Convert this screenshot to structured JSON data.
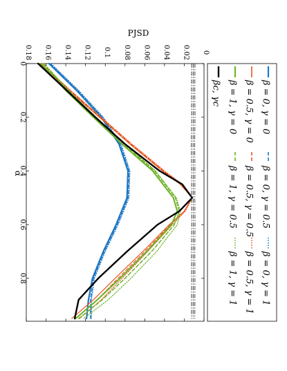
{
  "chart_data": {
    "type": "line",
    "orientation": "rotated-90-clockwise",
    "xlabel": "α",
    "ylabel": "PJSD",
    "xlim": [
      0,
      0.96
    ],
    "ylim": [
      0,
      0.18
    ],
    "x_ticks": [
      "0",
      "0.2",
      "0.4",
      "0.6",
      "0.8"
    ],
    "x_tick_values": [
      0,
      0.2,
      0.4,
      0.6,
      0.8
    ],
    "y_ticks": [
      "0",
      "0.02",
      "0.04",
      "0.06",
      "0.08",
      "0.1",
      "0.12",
      "0.14",
      "0.16",
      "0.18"
    ],
    "y_tick_values": [
      0,
      0.02,
      0.04,
      0.06,
      0.08,
      0.1,
      0.12,
      0.14,
      0.16,
      0.18
    ],
    "grid": false,
    "legend_position": "right",
    "series": [
      {
        "name": "β = 0, γ = 0",
        "color": "#1f77c4",
        "dash": "solid",
        "width": 2.2,
        "x": [
          0.0,
          0.1,
          0.2,
          0.3,
          0.4,
          0.5,
          0.6,
          0.7,
          0.8,
          0.88,
          0.95
        ],
        "y": [
          0.157,
          0.129,
          0.104,
          0.086,
          0.077,
          0.078,
          0.089,
          0.102,
          0.113,
          0.117,
          0.119
        ]
      },
      {
        "name": "β = 0, γ = 0.5",
        "color": "#1f77c4",
        "dash": "dash",
        "width": 1.4,
        "x": [
          0.0,
          0.1,
          0.2,
          0.3,
          0.4,
          0.5,
          0.6,
          0.7,
          0.8,
          0.88,
          0.95
        ],
        "y": [
          0.156,
          0.128,
          0.103,
          0.085,
          0.076,
          0.077,
          0.088,
          0.101,
          0.112,
          0.115,
          0.115
        ]
      },
      {
        "name": "β = 0, γ = 1",
        "color": "#1f77c4",
        "dash": "dot",
        "width": 1.2,
        "x": [
          0.0,
          0.1,
          0.2,
          0.3,
          0.4,
          0.5,
          0.6,
          0.7,
          0.8,
          0.88,
          0.95
        ],
        "y": [
          0.155,
          0.127,
          0.102,
          0.084,
          0.075,
          0.076,
          0.087,
          0.1,
          0.111,
          0.114,
          0.114
        ]
      },
      {
        "name": "β = 0.5, γ = 0",
        "color": "#e8541e",
        "dash": "solid",
        "width": 1.2,
        "x": [
          0.0,
          0.1,
          0.2,
          0.3,
          0.4,
          0.45,
          0.5,
          0.55,
          0.6,
          0.7,
          0.8,
          0.88,
          0.95
        ],
        "y": [
          0.167,
          0.137,
          0.106,
          0.075,
          0.042,
          0.024,
          0.012,
          0.02,
          0.035,
          0.062,
          0.09,
          0.112,
          0.134
        ]
      },
      {
        "name": "β = 0.5, γ = 0.5",
        "color": "#e8541e",
        "dash": "dash",
        "width": 1.2,
        "x": [
          0.0,
          0.1,
          0.2,
          0.3,
          0.4,
          0.45,
          0.5,
          0.55,
          0.6,
          0.7,
          0.8,
          0.88,
          0.95
        ],
        "y": [
          0.166,
          0.136,
          0.105,
          0.074,
          0.041,
          0.023,
          0.012,
          0.02,
          0.034,
          0.06,
          0.087,
          0.108,
          0.13
        ]
      },
      {
        "name": "β = 0.5, γ = 1",
        "color": "#e8541e",
        "dash": "dot",
        "width": 1.2,
        "x": [
          0.0,
          0.1,
          0.2,
          0.3,
          0.4,
          0.45,
          0.5,
          0.55,
          0.6,
          0.7,
          0.8,
          0.88,
          0.95
        ],
        "y": [
          0.165,
          0.135,
          0.104,
          0.073,
          0.04,
          0.022,
          0.012,
          0.019,
          0.032,
          0.057,
          0.083,
          0.104,
          0.126
        ]
      },
      {
        "name": "β = 1, γ = 0",
        "color": "#6ab023",
        "dash": "solid",
        "width": 2.0,
        "x": [
          0.0,
          0.1,
          0.2,
          0.3,
          0.4,
          0.5,
          0.55,
          0.6,
          0.7,
          0.8,
          0.88,
          0.95
        ],
        "y": [
          0.165,
          0.14,
          0.112,
          0.083,
          0.052,
          0.031,
          0.027,
          0.033,
          0.058,
          0.085,
          0.108,
          0.13
        ]
      },
      {
        "name": "β = 1, γ = 0.5",
        "color": "#6ab023",
        "dash": "dash",
        "width": 1.5,
        "x": [
          0.0,
          0.1,
          0.2,
          0.3,
          0.4,
          0.5,
          0.55,
          0.6,
          0.7,
          0.8,
          0.88,
          0.95
        ],
        "y": [
          0.163,
          0.138,
          0.11,
          0.081,
          0.05,
          0.029,
          0.025,
          0.03,
          0.053,
          0.08,
          0.103,
          0.127
        ]
      },
      {
        "name": "β = 1, γ = 1",
        "color": "#6ab023",
        "dash": "dot",
        "width": 1.2,
        "x": [
          0.0,
          0.1,
          0.2,
          0.3,
          0.4,
          0.5,
          0.55,
          0.6,
          0.7,
          0.8,
          0.88,
          0.95
        ],
        "y": [
          0.162,
          0.137,
          0.109,
          0.08,
          0.049,
          0.028,
          0.024,
          0.027,
          0.048,
          0.074,
          0.097,
          0.122
        ]
      },
      {
        "name": "βc, γc",
        "color": "#000000",
        "dash": "solid",
        "width": 2.4,
        "x": [
          0.0,
          0.1,
          0.2,
          0.3,
          0.4,
          0.45,
          0.5,
          0.55,
          0.6,
          0.7,
          0.8,
          0.88,
          0.95
        ],
        "y": [
          0.168,
          0.139,
          0.11,
          0.08,
          0.045,
          0.022,
          0.012,
          0.025,
          0.047,
          0.078,
          0.107,
          0.127,
          0.131
        ]
      }
    ],
    "band_series": [
      {
        "color": "#3a3a3a",
        "dash": "dashdot",
        "width": 1.0,
        "x": [
          0.0,
          0.1,
          0.2,
          0.3,
          0.4,
          0.5,
          0.6,
          0.7,
          0.8,
          0.9,
          0.95
        ],
        "y": [
          0.0125,
          0.0127,
          0.0124,
          0.0128,
          0.0125,
          0.0126,
          0.0124,
          0.0127,
          0.0125,
          0.0126,
          0.0126
        ]
      },
      {
        "color": "#3a3a3a",
        "dash": "dashdot",
        "width": 1.0,
        "x": [
          0.0,
          0.1,
          0.2,
          0.3,
          0.4,
          0.5,
          0.6,
          0.7,
          0.8,
          0.9,
          0.95
        ],
        "y": [
          0.0108,
          0.011,
          0.0107,
          0.0111,
          0.0108,
          0.0109,
          0.0107,
          0.011,
          0.0108,
          0.0109,
          0.0109
        ]
      },
      {
        "color": "#3a3a3a",
        "dash": "dashdot",
        "width": 1.0,
        "x": [
          0.0,
          0.1,
          0.2,
          0.3,
          0.4,
          0.5,
          0.6,
          0.7,
          0.8,
          0.9,
          0.95
        ],
        "y": [
          0.0092,
          0.0094,
          0.0091,
          0.0095,
          0.0092,
          0.0093,
          0.0091,
          0.0094,
          0.0092,
          0.0093,
          0.0093
        ]
      }
    ]
  }
}
